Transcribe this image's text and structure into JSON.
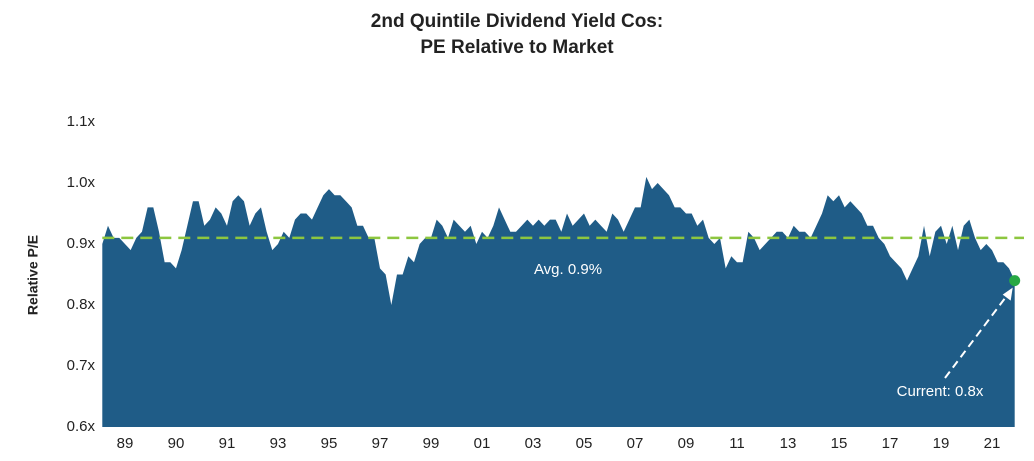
{
  "chart_data": {
    "type": "area",
    "title": [
      "2nd Quintile Dividend Yield Cos:",
      "PE Relative to Market"
    ],
    "ylabel": "Relative P/E",
    "categories": [
      null,
      null,
      null,
      null,
      "89",
      null,
      null,
      null,
      null,
      null,
      null,
      null,
      null,
      "90",
      null,
      null,
      null,
      null,
      null,
      null,
      null,
      null,
      "91",
      null,
      null,
      null,
      null,
      null,
      null,
      null,
      null,
      "93",
      null,
      null,
      null,
      null,
      null,
      null,
      null,
      null,
      "95",
      null,
      null,
      null,
      null,
      null,
      null,
      null,
      null,
      "97",
      null,
      null,
      null,
      null,
      null,
      null,
      null,
      null,
      "99",
      null,
      null,
      null,
      null,
      null,
      null,
      null,
      null,
      "01",
      null,
      null,
      null,
      null,
      null,
      null,
      null,
      null,
      "03",
      null,
      null,
      null,
      null,
      null,
      null,
      null,
      null,
      "05",
      null,
      null,
      null,
      null,
      null,
      null,
      null,
      null,
      "07",
      null,
      null,
      null,
      null,
      null,
      null,
      null,
      null,
      "09",
      null,
      null,
      null,
      null,
      null,
      null,
      null,
      null,
      "11",
      null,
      null,
      null,
      null,
      null,
      null,
      null,
      null,
      "13",
      null,
      null,
      null,
      null,
      null,
      null,
      null,
      null,
      "15",
      null,
      null,
      null,
      null,
      null,
      null,
      null,
      null,
      "17",
      null,
      null,
      null,
      null,
      null,
      null,
      null,
      null,
      "19",
      null,
      null,
      null,
      null,
      null,
      null,
      null,
      null,
      "21",
      null,
      null,
      null,
      null
    ],
    "values": [
      0.9,
      0.93,
      0.91,
      0.91,
      0.9,
      0.89,
      0.91,
      0.92,
      0.96,
      0.96,
      0.92,
      0.87,
      0.87,
      0.86,
      0.89,
      0.93,
      0.97,
      0.97,
      0.93,
      0.94,
      0.96,
      0.95,
      0.93,
      0.97,
      0.98,
      0.97,
      0.93,
      0.95,
      0.96,
      0.92,
      0.89,
      0.9,
      0.92,
      0.91,
      0.94,
      0.95,
      0.95,
      0.94,
      0.96,
      0.98,
      0.99,
      0.98,
      0.98,
      0.97,
      0.96,
      0.93,
      0.93,
      0.91,
      0.91,
      0.86,
      0.85,
      0.8,
      0.85,
      0.85,
      0.88,
      0.87,
      0.9,
      0.91,
      0.91,
      0.94,
      0.93,
      0.91,
      0.94,
      0.93,
      0.92,
      0.93,
      0.9,
      0.92,
      0.91,
      0.93,
      0.96,
      0.94,
      0.92,
      0.92,
      0.93,
      0.94,
      0.93,
      0.94,
      0.93,
      0.94,
      0.94,
      0.92,
      0.95,
      0.93,
      0.94,
      0.95,
      0.93,
      0.94,
      0.93,
      0.92,
      0.95,
      0.94,
      0.92,
      0.94,
      0.96,
      0.96,
      1.01,
      0.99,
      1.0,
      0.99,
      0.98,
      0.96,
      0.96,
      0.95,
      0.95,
      0.93,
      0.94,
      0.91,
      0.9,
      0.91,
      0.86,
      0.88,
      0.87,
      0.87,
      0.92,
      0.91,
      0.89,
      0.9,
      0.91,
      0.92,
      0.92,
      0.91,
      0.93,
      0.92,
      0.92,
      0.91,
      0.93,
      0.95,
      0.98,
      0.97,
      0.98,
      0.96,
      0.97,
      0.96,
      0.95,
      0.93,
      0.93,
      0.91,
      0.9,
      0.88,
      0.87,
      0.86,
      0.84,
      0.86,
      0.88,
      0.93,
      0.88,
      0.92,
      0.93,
      0.9,
      0.93,
      0.89,
      0.93,
      0.94,
      0.91,
      0.89,
      0.9,
      0.89,
      0.87,
      0.87,
      0.86,
      0.84
    ],
    "color": "#1f5c87",
    "ylim": [
      0.6,
      1.1
    ],
    "yticks": [
      {
        "value": 0.6,
        "label": "0.6x"
      },
      {
        "value": 0.7,
        "label": "0.7x"
      },
      {
        "value": 0.8,
        "label": "0.8x"
      },
      {
        "value": 0.9,
        "label": "0.9x"
      },
      {
        "value": 1.0,
        "label": "1.0x"
      },
      {
        "value": 1.1,
        "label": "1.1x"
      }
    ],
    "average": {
      "value": 0.91,
      "label": "Avg. 0.9%",
      "color": "#8dc63f"
    },
    "current": {
      "label": "Current: 0.8x",
      "color": "#27a844"
    }
  }
}
